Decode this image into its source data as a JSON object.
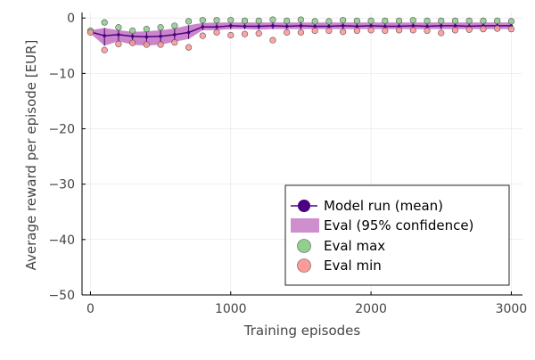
{
  "chart_data": {
    "type": "line",
    "title": "",
    "xlabel": "Training episodes",
    "ylabel": "Average reward per episode [EUR]",
    "xlim": [
      -60,
      3080
    ],
    "ylim": [
      -50,
      1
    ],
    "xticks": [
      0,
      1000,
      2000,
      3000
    ],
    "yticks": [
      0,
      -10,
      -20,
      -30,
      -40,
      -50
    ],
    "ytick_labels": [
      "0",
      "−10",
      "−20",
      "−30",
      "−40",
      "−50"
    ],
    "grid": true,
    "legend_position": "bottom-right",
    "x": [
      0,
      100,
      200,
      300,
      400,
      500,
      600,
      700,
      800,
      900,
      1000,
      1100,
      1200,
      1300,
      1400,
      1500,
      1600,
      1700,
      1800,
      1900,
      2000,
      2100,
      2200,
      2300,
      2400,
      2500,
      2600,
      2700,
      2800,
      2900,
      3000
    ],
    "series": [
      {
        "name": "Model run (mean)",
        "kind": "line",
        "color": "#4b0082",
        "values": [
          -2.5,
          -3.2,
          -3.0,
          -3.3,
          -3.4,
          -3.3,
          -3.0,
          -2.6,
          -1.6,
          -1.6,
          -1.4,
          -1.5,
          -1.5,
          -1.4,
          -1.5,
          -1.4,
          -1.5,
          -1.5,
          -1.4,
          -1.5,
          -1.4,
          -1.5,
          -1.5,
          -1.4,
          -1.5,
          -1.4,
          -1.4,
          -1.5,
          -1.4,
          -1.4,
          -1.4
        ]
      },
      {
        "name": "Eval (95% confidence)",
        "kind": "band",
        "color": "#a020a0",
        "lower": [
          -2.8,
          -5.0,
          -4.2,
          -4.8,
          -5.0,
          -4.8,
          -4.3,
          -3.8,
          -2.2,
          -2.2,
          -2.0,
          -2.0,
          -2.1,
          -2.0,
          -2.0,
          -2.0,
          -2.0,
          -2.0,
          -2.0,
          -2.0,
          -2.0,
          -2.0,
          -2.0,
          -2.0,
          -2.0,
          -2.0,
          -2.0,
          -2.0,
          -2.0,
          -2.0,
          -2.0
        ],
        "upper": [
          -2.2,
          -1.8,
          -2.2,
          -2.5,
          -2.4,
          -2.2,
          -1.9,
          -1.3,
          -0.9,
          -0.8,
          -0.8,
          -0.8,
          -0.8,
          -0.8,
          -0.8,
          -0.8,
          -0.8,
          -0.8,
          -0.8,
          -0.8,
          -0.8,
          -0.8,
          -0.8,
          -0.8,
          -0.8,
          -0.8,
          -0.8,
          -0.8,
          -0.8,
          -0.8,
          -0.8
        ]
      },
      {
        "name": "Eval max",
        "kind": "scatter",
        "color": "#8fcf8f",
        "values": [
          -2.3,
          -0.8,
          -1.7,
          -2.3,
          -2.0,
          -1.7,
          -1.4,
          -0.6,
          -0.4,
          -0.4,
          -0.4,
          -0.5,
          -0.5,
          -0.3,
          -0.5,
          -0.3,
          -0.6,
          -0.6,
          -0.4,
          -0.5,
          -0.5,
          -0.5,
          -0.5,
          -0.4,
          -0.5,
          -0.5,
          -0.5,
          -0.5,
          -0.5,
          -0.5,
          -0.6
        ]
      },
      {
        "name": "Eval min",
        "kind": "scatter",
        "color": "#ff9a9a",
        "values": [
          -2.6,
          -5.8,
          -4.7,
          -4.5,
          -4.8,
          -4.8,
          -4.4,
          -5.3,
          -3.2,
          -2.6,
          -3.1,
          -2.9,
          -2.8,
          -4.0,
          -2.6,
          -2.6,
          -2.3,
          -2.3,
          -2.5,
          -2.3,
          -2.2,
          -2.3,
          -2.2,
          -2.2,
          -2.3,
          -2.7,
          -2.2,
          -2.1,
          -2.0,
          -1.9,
          -2.0
        ]
      }
    ]
  }
}
